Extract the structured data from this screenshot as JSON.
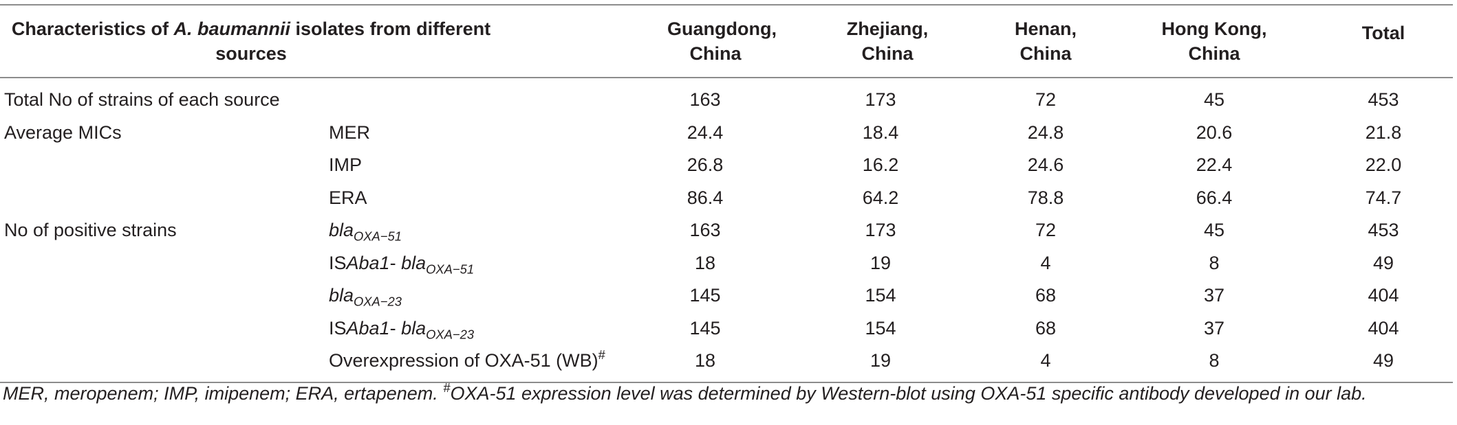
{
  "header": {
    "col0": {
      "prefix": "Characteristics of ",
      "species": "A. baumannii",
      "suffix": " isolates from different sources"
    },
    "sources": [
      "Guangdong, China",
      "Zhejiang, China",
      "Henan, China",
      "Hong Kong, China"
    ],
    "total": "Total"
  },
  "rows": [
    {
      "label": "Total No of strains of each source",
      "sub": "",
      "values": [
        "163",
        "173",
        "72",
        "45",
        "453"
      ]
    },
    {
      "label": "Average MICs",
      "sub": "MER",
      "values": [
        "24.4",
        "18.4",
        "24.8",
        "20.6",
        "21.8"
      ]
    },
    {
      "label": "",
      "sub": "IMP",
      "values": [
        "26.8",
        "16.2",
        "24.6",
        "22.4",
        "22.0"
      ]
    },
    {
      "label": "",
      "sub": "ERA",
      "values": [
        "86.4",
        "64.2",
        "78.8",
        "66.4",
        "74.7"
      ]
    },
    {
      "label": "No of positive strains",
      "sub_gene": "bla",
      "sub_gene_index": "OXA−51",
      "values": [
        "163",
        "173",
        "72",
        "45",
        "453"
      ]
    },
    {
      "label": "",
      "sub_is": "IS",
      "sub_is_it": "Aba1",
      "sub_sep": "- ",
      "sub_gene": "bla",
      "sub_gene_index": "OXA−51",
      "values": [
        "18",
        "19",
        "4",
        "8",
        "49"
      ]
    },
    {
      "label": "",
      "sub_gene": "bla",
      "sub_gene_index": "OXA−23",
      "values": [
        "145",
        "154",
        "68",
        "37",
        "404"
      ]
    },
    {
      "label": "",
      "sub_is": "IS",
      "sub_is_it": "Aba1",
      "sub_sep": "- ",
      "sub_gene": "bla",
      "sub_gene_index": "OXA−23",
      "values": [
        "145",
        "154",
        "68",
        "37",
        "404"
      ]
    },
    {
      "label": "",
      "sub_text": "Overexpression of OXA-51 (WB)",
      "sub_mark": "#",
      "values": [
        "18",
        "19",
        "4",
        "8",
        "49"
      ]
    }
  ],
  "footnote": {
    "abbrev": "MER, meropenem; IMP, imipenem; ERA, ertapenem. ",
    "mark": "#",
    "text": "OXA-51 expression level was determined by Western-blot using OXA-51 specific antibody developed in our lab."
  }
}
